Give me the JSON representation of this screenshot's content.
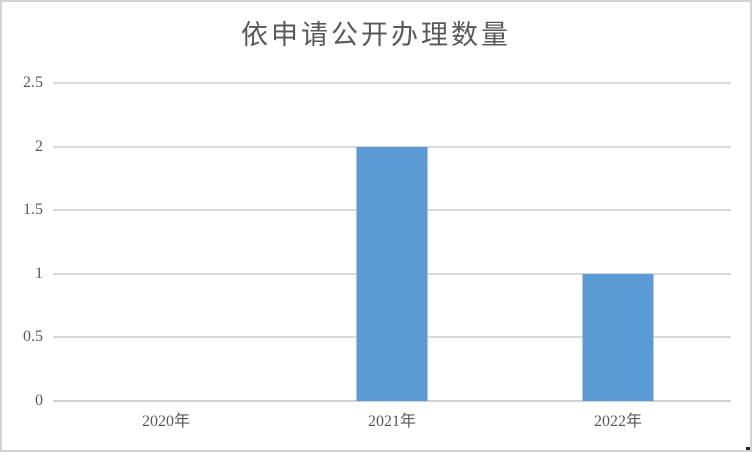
{
  "colors": {
    "bar": "#5B9BD5",
    "gridline": "#D9D9D9",
    "axis_line": "#D0D0D0",
    "text": "#595959",
    "chart_border": "#D2D2D2"
  },
  "chart_data": {
    "type": "bar",
    "title": "依申请公开办理数量",
    "categories": [
      "2020年",
      "2021年",
      "2022年"
    ],
    "values": [
      0,
      2,
      1
    ],
    "xlabel": "",
    "ylabel": "",
    "ylim": [
      0,
      2.5
    ],
    "ytick_step": 0.5,
    "ytick_labels": [
      "0",
      "0.5",
      "1",
      "1.5",
      "2",
      "2.5"
    ],
    "grid": "horizontal-only",
    "legend": "none",
    "bar_color": "#5B9BD5"
  }
}
